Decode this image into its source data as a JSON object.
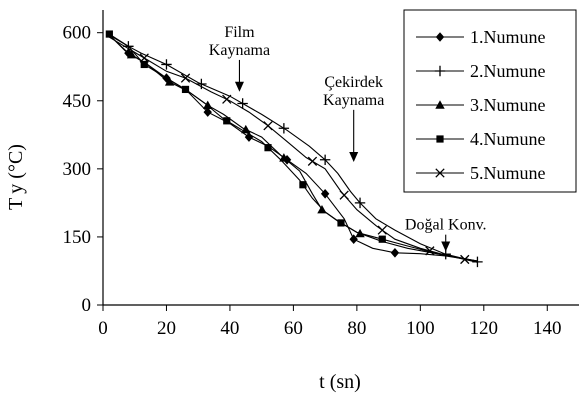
{
  "chart_data": {
    "type": "line",
    "title": "",
    "xlabel": "t (sn)",
    "ylabel": "T y (°C)",
    "xlim": [
      0,
      150
    ],
    "ylim": [
      0,
      650
    ],
    "x_ticks": [
      0,
      20,
      40,
      60,
      80,
      100,
      120,
      140
    ],
    "y_ticks": [
      0,
      150,
      300,
      450,
      600
    ],
    "x_tick_labels": [
      "0",
      "20",
      "40",
      "60",
      "80",
      "100",
      "120",
      "140"
    ],
    "y_tick_labels": [
      "0",
      "150",
      "300",
      "450",
      "600"
    ],
    "grid": false,
    "legend_position": "top-right",
    "series": [
      {
        "name": "1.Numune",
        "marker": "diamond",
        "points": [
          [
            2,
            595
          ],
          [
            8,
            555
          ],
          [
            14,
            530
          ],
          [
            20,
            500
          ],
          [
            26,
            475
          ],
          [
            33,
            425
          ],
          [
            40,
            400
          ],
          [
            46,
            370
          ],
          [
            52,
            350
          ],
          [
            58,
            320
          ],
          [
            64,
            290
          ],
          [
            70,
            245
          ],
          [
            76,
            190
          ],
          [
            79,
            145
          ],
          [
            85,
            125
          ],
          [
            92,
            115
          ],
          [
            100,
            113
          ],
          [
            108,
            108
          ],
          [
            118,
            97
          ]
        ],
        "marker_x": [
          8,
          20,
          33,
          46,
          58,
          70,
          79,
          92
        ]
      },
      {
        "name": "2.Numune",
        "marker": "plus",
        "points": [
          [
            2,
            595
          ],
          [
            8,
            570
          ],
          [
            12,
            555
          ],
          [
            20,
            530
          ],
          [
            30,
            490
          ],
          [
            40,
            460
          ],
          [
            50,
            420
          ],
          [
            58,
            385
          ],
          [
            65,
            350
          ],
          [
            70,
            320
          ],
          [
            74,
            290
          ],
          [
            78,
            250
          ],
          [
            81,
            225
          ],
          [
            86,
            190
          ],
          [
            92,
            165
          ],
          [
            100,
            135
          ],
          [
            108,
            112
          ],
          [
            118,
            95
          ]
        ],
        "marker_x": [
          8,
          20,
          31,
          44,
          57,
          70,
          81,
          108,
          118
        ]
      },
      {
        "name": "3.Numune",
        "marker": "triangle",
        "points": [
          [
            2,
            595
          ],
          [
            7,
            560
          ],
          [
            14,
            530
          ],
          [
            20,
            495
          ],
          [
            27,
            470
          ],
          [
            33,
            440
          ],
          [
            38,
            420
          ],
          [
            44,
            390
          ],
          [
            50,
            370
          ],
          [
            56,
            330
          ],
          [
            62,
            295
          ],
          [
            66,
            245
          ],
          [
            69,
            210
          ],
          [
            74,
            185
          ],
          [
            80,
            160
          ],
          [
            88,
            140
          ],
          [
            96,
            125
          ],
          [
            106,
            112
          ],
          [
            118,
            97
          ]
        ],
        "marker_x": [
          9,
          21,
          33,
          45,
          57,
          69,
          81
        ]
      },
      {
        "name": "4.Numune",
        "marker": "square",
        "points": [
          [
            2,
            597
          ],
          [
            8,
            570
          ],
          [
            13,
            530
          ],
          [
            20,
            500
          ],
          [
            26,
            475
          ],
          [
            32,
            445
          ],
          [
            38,
            410
          ],
          [
            44,
            385
          ],
          [
            50,
            360
          ],
          [
            56,
            320
          ],
          [
            62,
            275
          ],
          [
            66,
            235
          ],
          [
            70,
            205
          ],
          [
            74,
            185
          ],
          [
            80,
            160
          ],
          [
            88,
            145
          ],
          [
            96,
            130
          ],
          [
            106,
            112
          ],
          [
            118,
            97
          ]
        ],
        "marker_x": [
          2,
          13,
          26,
          39,
          52,
          63,
          75,
          88
        ]
      },
      {
        "name": "5.Numune",
        "marker": "x",
        "points": [
          [
            2,
            590
          ],
          [
            8,
            565
          ],
          [
            14,
            540
          ],
          [
            20,
            515
          ],
          [
            26,
            500
          ],
          [
            34,
            470
          ],
          [
            40,
            450
          ],
          [
            46,
            425
          ],
          [
            52,
            395
          ],
          [
            58,
            360
          ],
          [
            64,
            325
          ],
          [
            70,
            300
          ],
          [
            75,
            250
          ],
          [
            80,
            210
          ],
          [
            86,
            175
          ],
          [
            92,
            145
          ],
          [
            100,
            125
          ],
          [
            108,
            110
          ],
          [
            118,
            94
          ]
        ],
        "marker_x": [
          13,
          26,
          39,
          52,
          66,
          76,
          88,
          103,
          114
        ]
      }
    ],
    "annotations": [
      {
        "lines": [
          "Film",
          "Kaynama"
        ],
        "arrow_x": 43,
        "arrow_y_top": 540,
        "arrow_y_bottom": 470
      },
      {
        "lines": [
          "Çekirdek",
          "Kaynama"
        ],
        "arrow_x": 79,
        "arrow_y_top": 430,
        "arrow_y_bottom": 315
      },
      {
        "lines": [
          "Doğal Konv."
        ],
        "arrow_x": 108,
        "arrow_y_top": 155,
        "arrow_y_bottom": 118
      }
    ]
  }
}
